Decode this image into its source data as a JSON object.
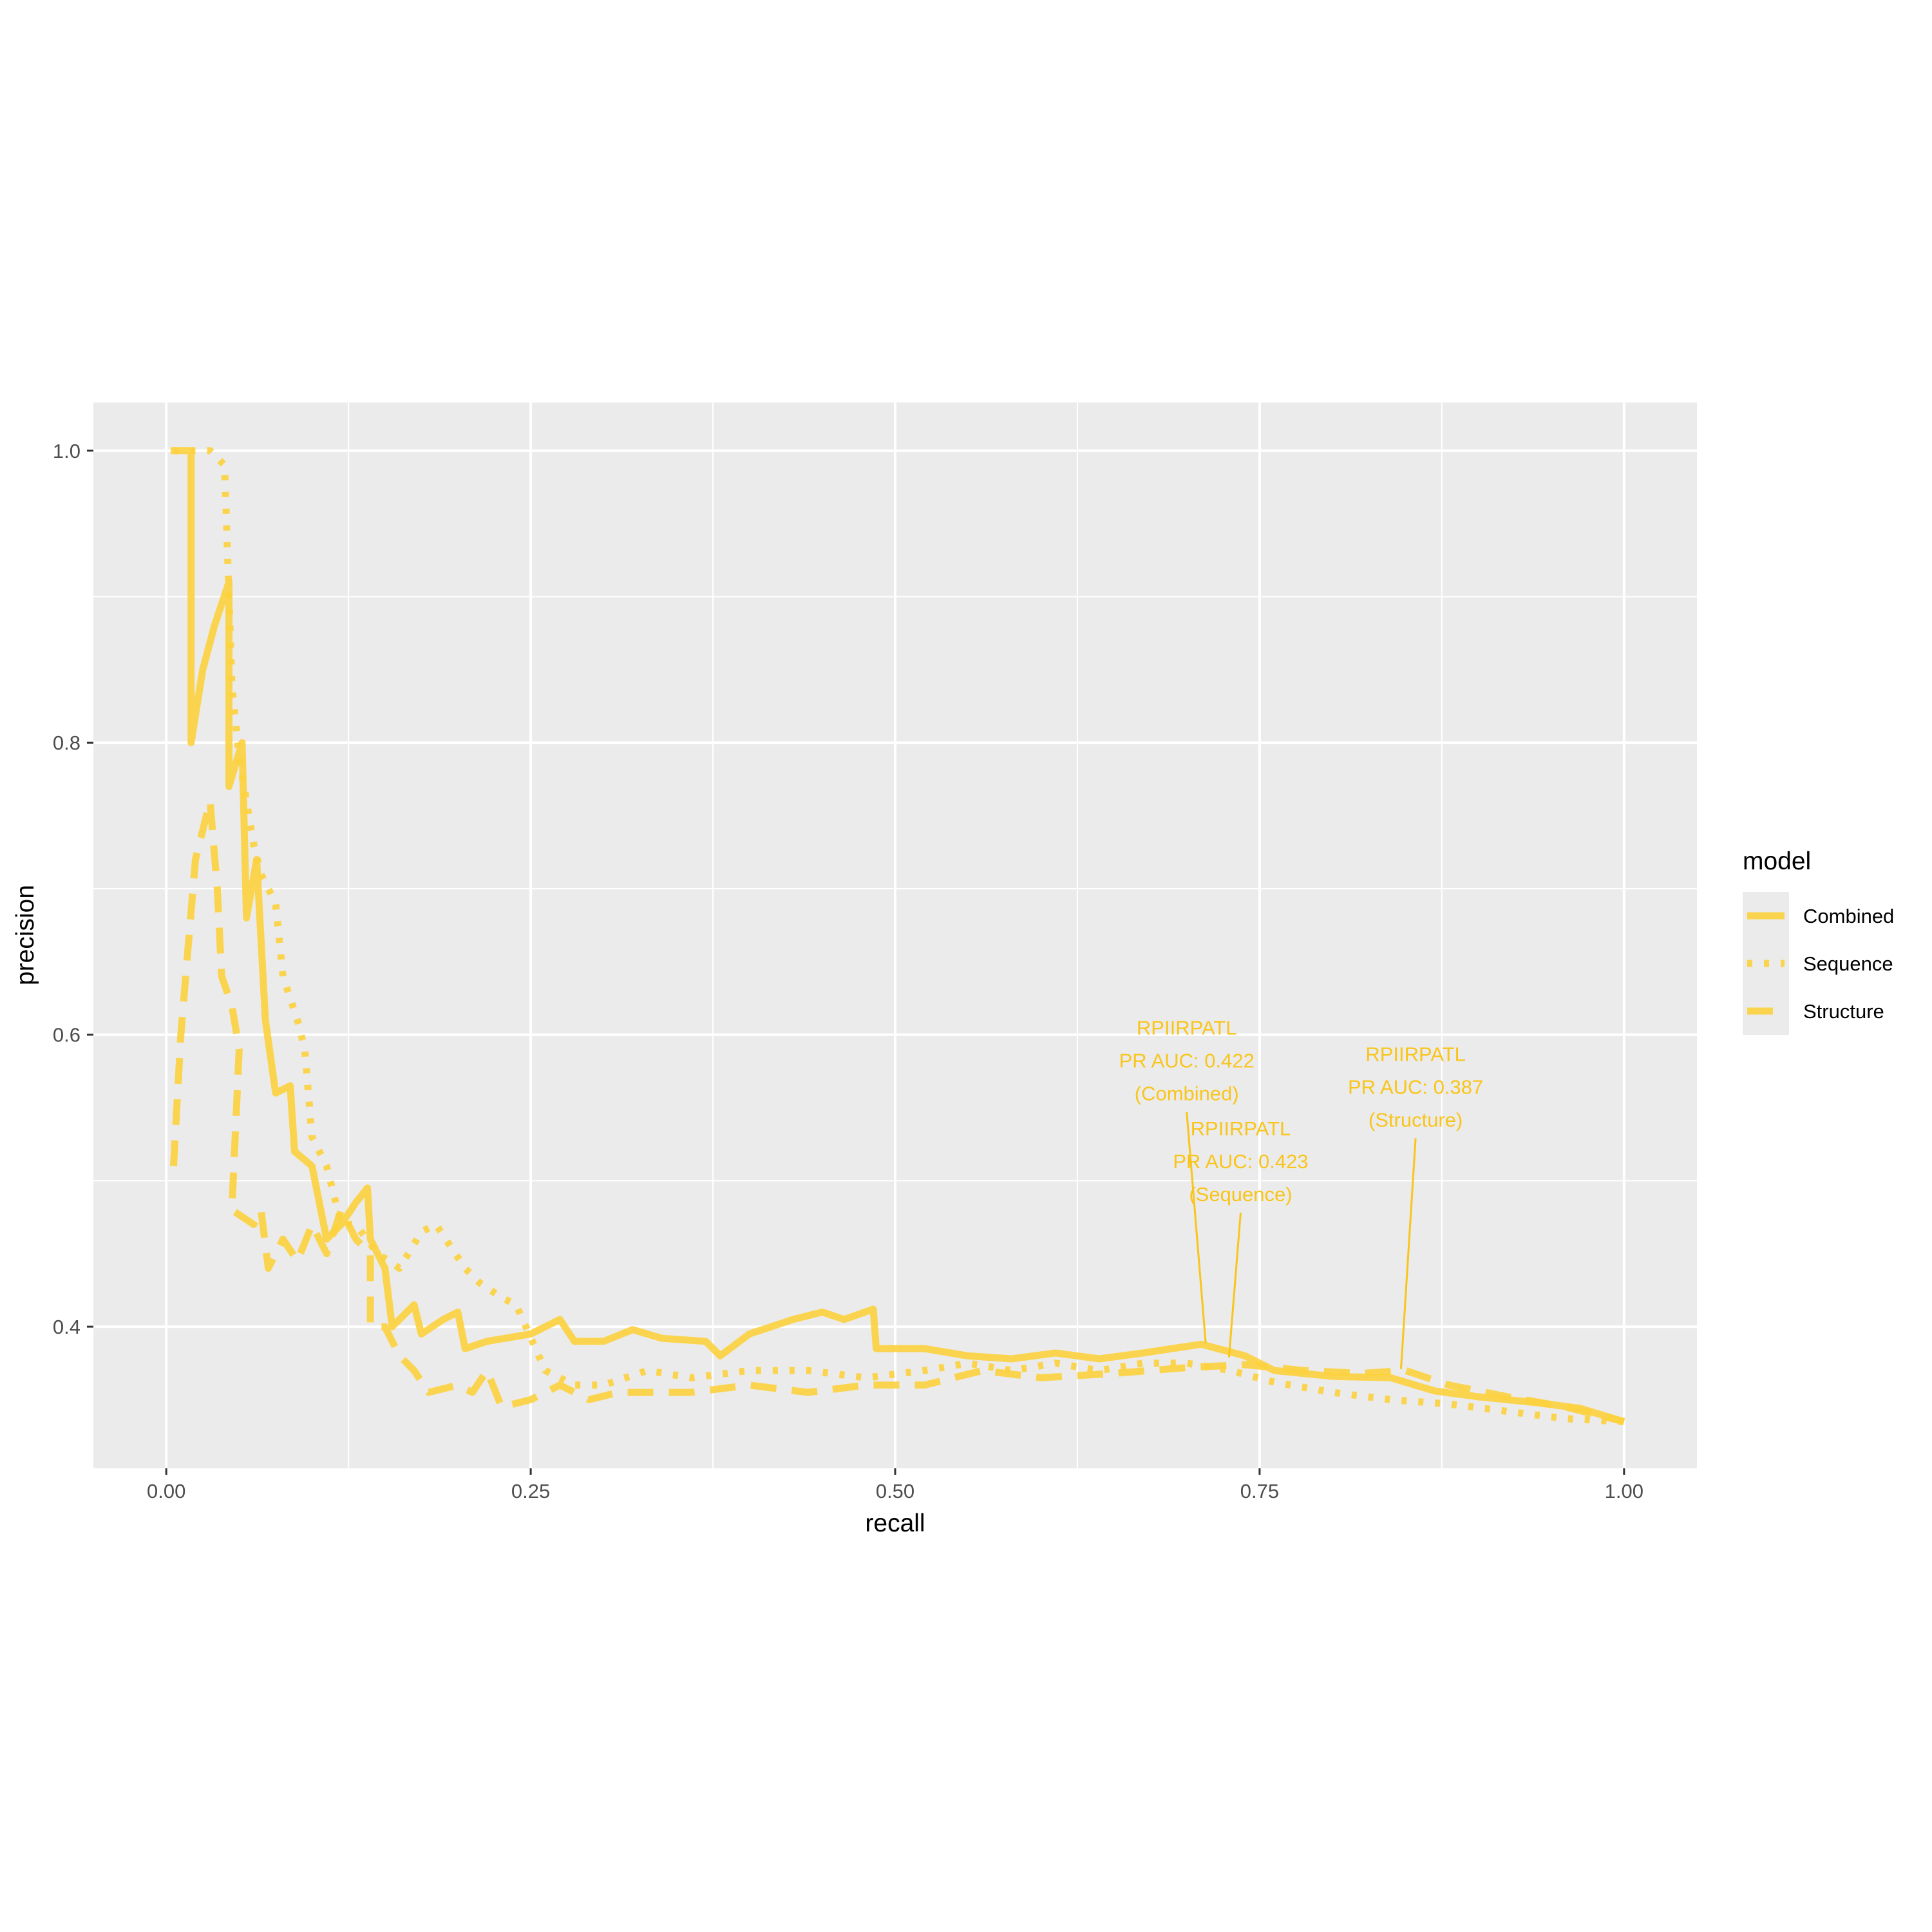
{
  "colors": {
    "series": "#FDD23E",
    "panel": "#EBEBEB",
    "grid": "#FFFFFF",
    "annotation": "#F9C51B"
  },
  "chart_data": {
    "type": "line",
    "title": "",
    "xlabel": "recall",
    "ylabel": "precision",
    "xlim": [
      -0.05,
      1.05
    ],
    "ylim": [
      0.303,
      1.033
    ],
    "x_ticks": [
      "0.00",
      "0.25",
      "0.50",
      "0.75",
      "1.00"
    ],
    "x_tick_values": [
      0,
      0.25,
      0.5,
      0.75,
      1.0
    ],
    "y_ticks": [
      "0.4",
      "0.6",
      "0.8",
      "1.0"
    ],
    "y_tick_values": [
      0.4,
      0.6,
      0.8,
      1.0
    ],
    "grid": true,
    "legend": {
      "title": "model",
      "placement": "right"
    },
    "series": [
      {
        "name": "Combined",
        "linetype": "solid",
        "points": [
          [
            0.003,
            1.0
          ],
          [
            0.017,
            1.0
          ],
          [
            0.017,
            0.8
          ],
          [
            0.025,
            0.85
          ],
          [
            0.033,
            0.88
          ],
          [
            0.043,
            0.91
          ],
          [
            0.043,
            0.77
          ],
          [
            0.052,
            0.8
          ],
          [
            0.055,
            0.68
          ],
          [
            0.062,
            0.72
          ],
          [
            0.068,
            0.61
          ],
          [
            0.075,
            0.56
          ],
          [
            0.085,
            0.565
          ],
          [
            0.088,
            0.52
          ],
          [
            0.1,
            0.51
          ],
          [
            0.11,
            0.46
          ],
          [
            0.12,
            0.47
          ],
          [
            0.13,
            0.485
          ],
          [
            0.138,
            0.495
          ],
          [
            0.14,
            0.46
          ],
          [
            0.15,
            0.44
          ],
          [
            0.155,
            0.4
          ],
          [
            0.17,
            0.415
          ],
          [
            0.175,
            0.395
          ],
          [
            0.19,
            0.405
          ],
          [
            0.2,
            0.41
          ],
          [
            0.205,
            0.385
          ],
          [
            0.22,
            0.39
          ],
          [
            0.25,
            0.395
          ],
          [
            0.27,
            0.405
          ],
          [
            0.28,
            0.39
          ],
          [
            0.3,
            0.39
          ],
          [
            0.32,
            0.398
          ],
          [
            0.34,
            0.392
          ],
          [
            0.37,
            0.39
          ],
          [
            0.38,
            0.38
          ],
          [
            0.4,
            0.395
          ],
          [
            0.43,
            0.405
          ],
          [
            0.45,
            0.41
          ],
          [
            0.465,
            0.405
          ],
          [
            0.485,
            0.412
          ],
          [
            0.487,
            0.385
          ],
          [
            0.52,
            0.385
          ],
          [
            0.55,
            0.38
          ],
          [
            0.58,
            0.378
          ],
          [
            0.61,
            0.382
          ],
          [
            0.64,
            0.378
          ],
          [
            0.67,
            0.382
          ],
          [
            0.71,
            0.388
          ],
          [
            0.74,
            0.38
          ],
          [
            0.76,
            0.37
          ],
          [
            0.8,
            0.366
          ],
          [
            0.84,
            0.365
          ],
          [
            0.87,
            0.356
          ],
          [
            0.9,
            0.352
          ],
          [
            0.94,
            0.348
          ],
          [
            0.97,
            0.344
          ],
          [
            1.0,
            0.335
          ]
        ]
      },
      {
        "name": "Sequence",
        "linetype": "dotted",
        "points": [
          [
            0.005,
            1.0
          ],
          [
            0.03,
            1.0
          ],
          [
            0.04,
            0.99
          ],
          [
            0.042,
            0.93
          ],
          [
            0.045,
            0.84
          ],
          [
            0.05,
            0.79
          ],
          [
            0.055,
            0.76
          ],
          [
            0.06,
            0.73
          ],
          [
            0.065,
            0.71
          ],
          [
            0.075,
            0.69
          ],
          [
            0.08,
            0.64
          ],
          [
            0.09,
            0.61
          ],
          [
            0.095,
            0.59
          ],
          [
            0.1,
            0.53
          ],
          [
            0.11,
            0.51
          ],
          [
            0.12,
            0.47
          ],
          [
            0.13,
            0.47
          ],
          [
            0.145,
            0.45
          ],
          [
            0.16,
            0.44
          ],
          [
            0.175,
            0.465
          ],
          [
            0.185,
            0.47
          ],
          [
            0.195,
            0.455
          ],
          [
            0.205,
            0.44
          ],
          [
            0.215,
            0.43
          ],
          [
            0.23,
            0.42
          ],
          [
            0.24,
            0.415
          ],
          [
            0.26,
            0.37
          ],
          [
            0.28,
            0.36
          ],
          [
            0.3,
            0.36
          ],
          [
            0.33,
            0.37
          ],
          [
            0.36,
            0.365
          ],
          [
            0.4,
            0.37
          ],
          [
            0.44,
            0.37
          ],
          [
            0.48,
            0.365
          ],
          [
            0.52,
            0.37
          ],
          [
            0.55,
            0.375
          ],
          [
            0.58,
            0.37
          ],
          [
            0.61,
            0.375
          ],
          [
            0.64,
            0.37
          ],
          [
            0.67,
            0.375
          ],
          [
            0.7,
            0.375
          ],
          [
            0.73,
            0.37
          ],
          [
            0.76,
            0.362
          ],
          [
            0.8,
            0.355
          ],
          [
            0.84,
            0.35
          ],
          [
            0.88,
            0.347
          ],
          [
            0.92,
            0.342
          ],
          [
            0.96,
            0.337
          ],
          [
            1.0,
            0.335
          ]
        ]
      },
      {
        "name": "Structure",
        "linetype": "dashed",
        "points": [
          [
            0.005,
            0.51
          ],
          [
            0.01,
            0.6
          ],
          [
            0.015,
            0.66
          ],
          [
            0.02,
            0.72
          ],
          [
            0.03,
            0.76
          ],
          [
            0.035,
            0.7
          ],
          [
            0.038,
            0.64
          ],
          [
            0.045,
            0.62
          ],
          [
            0.05,
            0.59
          ],
          [
            0.045,
            0.48
          ],
          [
            0.06,
            0.47
          ],
          [
            0.065,
            0.48
          ],
          [
            0.07,
            0.44
          ],
          [
            0.08,
            0.46
          ],
          [
            0.09,
            0.445
          ],
          [
            0.1,
            0.47
          ],
          [
            0.11,
            0.45
          ],
          [
            0.12,
            0.48
          ],
          [
            0.13,
            0.46
          ],
          [
            0.14,
            0.45
          ],
          [
            0.14,
            0.4
          ],
          [
            0.15,
            0.4
          ],
          [
            0.16,
            0.38
          ],
          [
            0.17,
            0.37
          ],
          [
            0.18,
            0.355
          ],
          [
            0.2,
            0.36
          ],
          [
            0.21,
            0.355
          ],
          [
            0.22,
            0.37
          ],
          [
            0.23,
            0.345
          ],
          [
            0.25,
            0.35
          ],
          [
            0.27,
            0.36
          ],
          [
            0.29,
            0.35
          ],
          [
            0.31,
            0.355
          ],
          [
            0.33,
            0.355
          ],
          [
            0.36,
            0.355
          ],
          [
            0.4,
            0.36
          ],
          [
            0.44,
            0.355
          ],
          [
            0.48,
            0.36
          ],
          [
            0.52,
            0.36
          ],
          [
            0.56,
            0.37
          ],
          [
            0.6,
            0.365
          ],
          [
            0.65,
            0.368
          ],
          [
            0.7,
            0.372
          ],
          [
            0.74,
            0.374
          ],
          [
            0.78,
            0.37
          ],
          [
            0.82,
            0.368
          ],
          [
            0.85,
            0.37
          ],
          [
            0.88,
            0.36
          ],
          [
            0.92,
            0.352
          ],
          [
            0.96,
            0.345
          ],
          [
            1.0,
            0.335
          ]
        ]
      }
    ],
    "annotations": [
      {
        "lines": [
          "RPIIRPATL",
          "PR AUC: 0.422",
          "(Combined)"
        ],
        "label_x": 0.7,
        "label_y": 0.6,
        "point_x": 0.713,
        "point_y": 0.389
      },
      {
        "lines": [
          "RPIIRPATL",
          "PR AUC: 0.423",
          "(Sequence)"
        ],
        "label_x": 0.737,
        "label_y": 0.531,
        "point_x": 0.729,
        "point_y": 0.379
      },
      {
        "lines": [
          "RPIIRPATL",
          "PR AUC: 0.387",
          "(Structure)"
        ],
        "label_x": 0.857,
        "label_y": 0.582,
        "point_x": 0.847,
        "point_y": 0.371
      }
    ]
  }
}
